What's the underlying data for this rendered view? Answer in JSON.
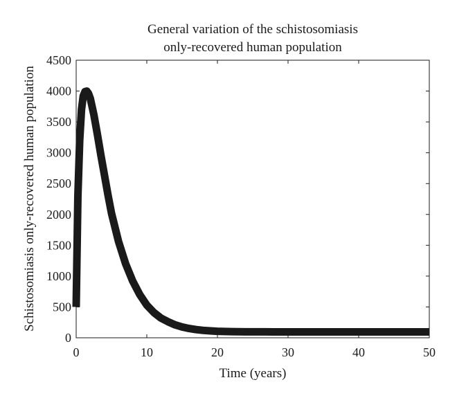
{
  "chart_data": {
    "type": "line",
    "title": [
      "General variation of the schistosomiasis",
      "only-recovered human population"
    ],
    "xlabel": "Time (years)",
    "ylabel": "Schistosomiasis only-recovered human population",
    "xlim": [
      0,
      50
    ],
    "ylim": [
      0,
      4500
    ],
    "xticks": [
      0,
      10,
      20,
      30,
      40,
      50
    ],
    "yticks": [
      0,
      500,
      1000,
      1500,
      2000,
      2500,
      3000,
      3500,
      4000,
      4500
    ],
    "grid": false,
    "line_color": "#1a1a1a",
    "series": [
      {
        "x": [
          0,
          0.25,
          0.5,
          0.75,
          1,
          1.25,
          1.5,
          1.75,
          2,
          2.5,
          3,
          3.5,
          4,
          4.5,
          5,
          6,
          7,
          8,
          9,
          10,
          11,
          12,
          13,
          14,
          15,
          16,
          17,
          18,
          19,
          20,
          22,
          24,
          26,
          28,
          30,
          35,
          40,
          45,
          50
        ],
        "y": [
          500,
          2300,
          3200,
          3700,
          3920,
          3990,
          4000,
          3960,
          3880,
          3620,
          3300,
          2960,
          2640,
          2320,
          2020,
          1560,
          1200,
          920,
          700,
          530,
          410,
          320,
          260,
          210,
          175,
          150,
          132,
          120,
          112,
          106,
          100,
          97,
          96,
          95,
          95,
          95,
          95,
          95,
          95
        ]
      }
    ]
  }
}
